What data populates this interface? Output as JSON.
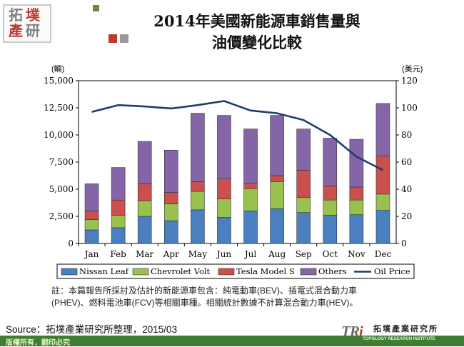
{
  "header": {
    "logo_chars": [
      "拓",
      "墣",
      "產",
      "研"
    ],
    "title_line1": "2014年美國新能源車銷售量與",
    "title_line2": "油價變化比較"
  },
  "colors": {
    "nissan": "#4a7fc0",
    "volt": "#99c14f",
    "tesla": "#c9504c",
    "others": "#8466a8",
    "oil": "#1f3c72",
    "logo_red": "#c0392b",
    "logo_gray": "#7f7f7f",
    "footer": "#3f7d32"
  },
  "chart_data": {
    "type": "bar",
    "stacked": true,
    "categories": [
      "Jan",
      "Feb",
      "Mar",
      "Apr",
      "May",
      "Jun",
      "Jul",
      "Aug",
      "Sep",
      "Oct",
      "Nov",
      "Dec"
    ],
    "series": [
      {
        "name": "Nissan Leaf",
        "values": [
          1250,
          1450,
          2500,
          2100,
          3100,
          2400,
          3000,
          3200,
          2850,
          2600,
          2650,
          3050
        ]
      },
      {
        "name": "Chevrolet Volt",
        "values": [
          950,
          1150,
          1450,
          1550,
          1700,
          1700,
          2050,
          2500,
          1400,
          1400,
          1350,
          1500
        ]
      },
      {
        "name": "Tesla Model S",
        "values": [
          800,
          1400,
          1550,
          1050,
          900,
          1850,
          500,
          550,
          2500,
          1300,
          1200,
          3500
        ]
      },
      {
        "name": "Others",
        "values": [
          2500,
          3000,
          3900,
          3900,
          6300,
          5850,
          5000,
          5550,
          3800,
          4400,
          4400,
          4850
        ]
      }
    ],
    "line_series": {
      "name": "Oil Price",
      "axis": "right",
      "values": [
        97,
        102,
        101,
        99.5,
        102,
        105,
        98,
        96,
        91,
        80,
        64,
        54
      ]
    },
    "ylabel_left": "(輛)",
    "ylabel_right": "(美元)",
    "ylim_left": [
      0,
      15000
    ],
    "ylim_right": [
      0,
      120
    ],
    "yticks_left": [
      "0",
      "2,500",
      "5,000",
      "7,500",
      "10,000",
      "12,500",
      "15,000"
    ],
    "yticks_right": [
      "0",
      "20",
      "40",
      "60",
      "80",
      "100",
      "120"
    ],
    "grid": false,
    "legend_placement": "bottom",
    "legend": [
      "Nissan Leaf",
      "Chevrolet Volt",
      "Tesla Model S",
      "Others",
      "Oil Price"
    ]
  },
  "notes": {
    "line1": "註：本篇報告所採討及估計的新能源車包含：純電動車(BEV)、插電式混合動力車",
    "line2": "(PHEV)、燃料電池車(FCV)等相關車種。相關統計數據不計算混合動力車(HEV)。"
  },
  "source": "Source：拓墣產業研究所整理，2015/03",
  "footer": {
    "copyright": "版權所有．翻印必究",
    "tri_logo_t": "T",
    "tri_logo_r": "R",
    "tri_logo_i": "i",
    "tri_name": "拓墣產業研究所",
    "tri_sub": "TOPOLOGY RESEARCH INSTITUTE"
  }
}
